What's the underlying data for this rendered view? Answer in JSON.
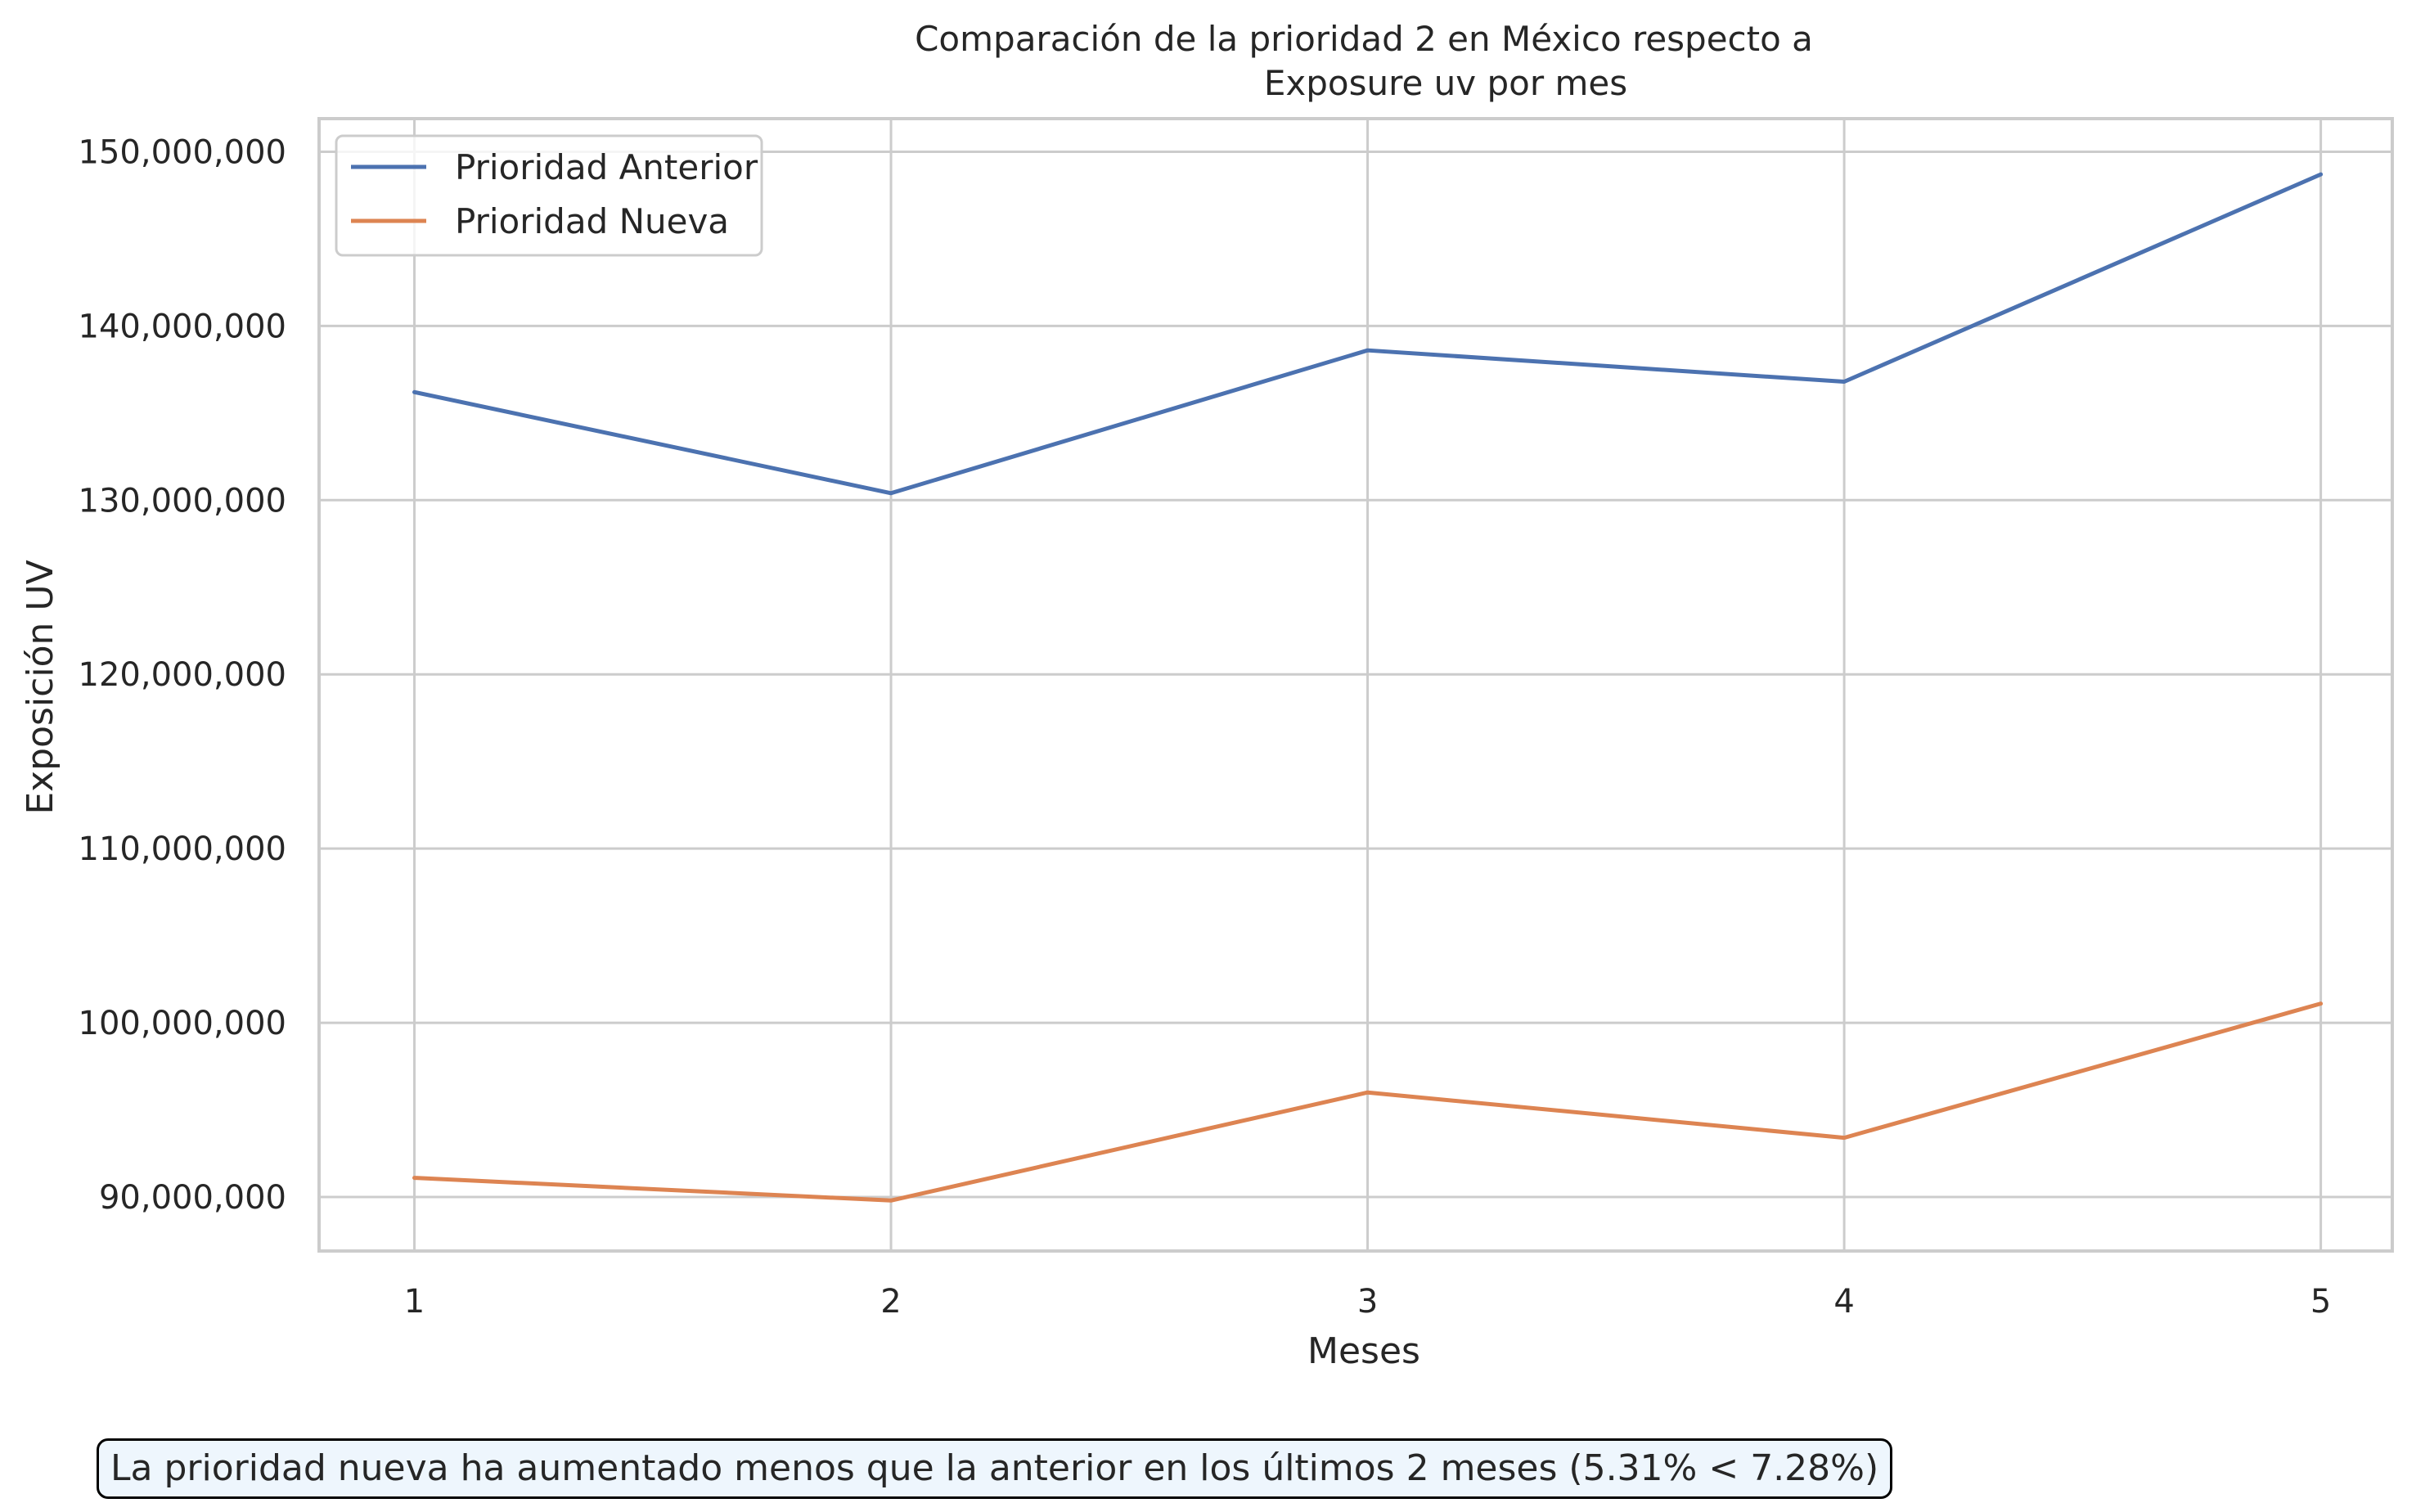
{
  "chart_data": {
    "type": "line",
    "title_line1": "Comparación de la prioridad 2 en México respecto a",
    "title_line2": "Exposure uv por mes",
    "xlabel": "Meses",
    "ylabel": "Exposición UV",
    "x": [
      1,
      2,
      3,
      4,
      5
    ],
    "x_tick_labels": [
      "1",
      "2",
      "3",
      "4",
      "5"
    ],
    "y_ticks": [
      90000000,
      100000000,
      110000000,
      120000000,
      130000000,
      140000000,
      150000000
    ],
    "y_tick_labels": [
      "90,000,000",
      "100,000,000",
      "110,000,000",
      "120,000,000",
      "130,000,000",
      "140,000,000",
      "150,000,000"
    ],
    "ylim": [
      86900000,
      151900000
    ],
    "xlim": [
      0.8,
      5.15
    ],
    "grid": true,
    "legend_position": "top-left",
    "series": [
      {
        "name": "Prioridad Anterior",
        "color": "#4c72b0",
        "values": [
          136200000,
          130400000,
          138600000,
          136800000,
          148700000
        ]
      },
      {
        "name": "Prioridad Nueva",
        "color": "#dd8452",
        "values": [
          91100000,
          89800000,
          96000000,
          93400000,
          101100000
        ]
      }
    ],
    "annotation": "La prioridad nueva ha aumentado menos que la anterior en los últimos 2 meses (5.31% < 7.28%)"
  }
}
